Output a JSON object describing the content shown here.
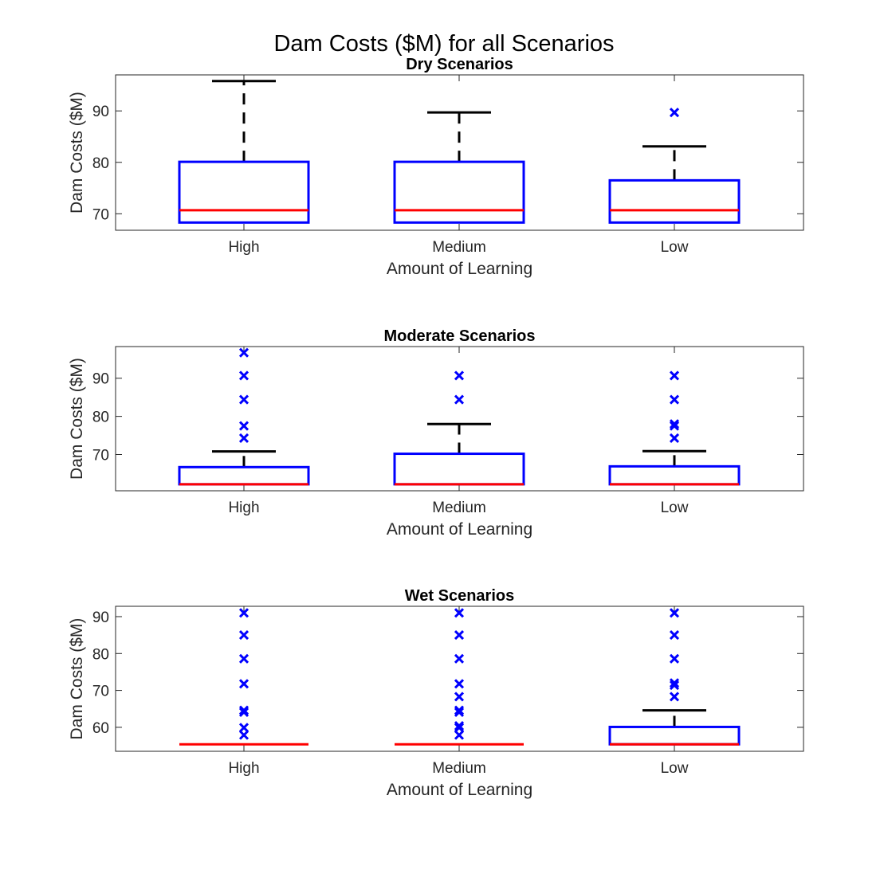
{
  "figure": {
    "title": "Dam Costs ($M) for all Scenarios"
  },
  "chart_data": [
    {
      "type": "box",
      "title": "Dry Scenarios",
      "xlabel": "Amount of Learning",
      "ylabel": "Dam Costs ($M)",
      "categories": [
        "High",
        "Medium",
        "Low"
      ],
      "ylim": [
        66.8,
        97.0
      ],
      "yticks": [
        70,
        80,
        90
      ],
      "yticklabels": [
        "70",
        "80",
        "90"
      ],
      "boxes": [
        {
          "category": "High",
          "q1": 68.3,
          "median": 70.7,
          "q3": 80.1,
          "whisker_low": 68.3,
          "whisker_high": 95.8,
          "outliers": []
        },
        {
          "category": "Medium",
          "q1": 68.3,
          "median": 70.7,
          "q3": 80.1,
          "whisker_low": 68.3,
          "whisker_high": 89.7,
          "outliers": []
        },
        {
          "category": "Low",
          "q1": 68.3,
          "median": 70.7,
          "q3": 76.5,
          "whisker_low": 68.3,
          "whisker_high": 83.1,
          "outliers": [
            89.7
          ]
        }
      ],
      "colors": {
        "box": "#0000ff",
        "median": "#ff0000",
        "whisker": "#000000",
        "outlier": "#0000ff"
      }
    },
    {
      "type": "box",
      "title": "Moderate Scenarios",
      "xlabel": "Amount of Learning",
      "ylabel": "Dam Costs ($M)",
      "categories": [
        "High",
        "Medium",
        "Low"
      ],
      "ylim": [
        60.5,
        98.3
      ],
      "yticks": [
        70,
        80,
        90
      ],
      "yticklabels": [
        "70",
        "80",
        "90"
      ],
      "boxes": [
        {
          "category": "High",
          "q1": 62.2,
          "median": 62.2,
          "q3": 66.7,
          "whisker_low": 62.2,
          "whisker_high": 70.8,
          "outliers": [
            74.3,
            77.5,
            84.4,
            90.7,
            96.7
          ]
        },
        {
          "category": "Medium",
          "q1": 62.2,
          "median": 62.2,
          "q3": 70.2,
          "whisker_low": 62.2,
          "whisker_high": 78.0,
          "outliers": [
            84.4,
            90.7
          ]
        },
        {
          "category": "Low",
          "q1": 62.2,
          "median": 62.2,
          "q3": 66.9,
          "whisker_low": 62.2,
          "whisker_high": 70.9,
          "outliers": [
            74.3,
            77.5,
            78.0,
            84.4,
            90.7
          ]
        }
      ],
      "colors": {
        "box": "#0000ff",
        "median": "#ff0000",
        "whisker": "#000000",
        "outlier": "#0000ff"
      }
    },
    {
      "type": "box",
      "title": "Wet Scenarios",
      "xlabel": "Amount of Learning",
      "ylabel": "Dam Costs ($M)",
      "categories": [
        "High",
        "Medium",
        "Low"
      ],
      "ylim": [
        53.5,
        92.8
      ],
      "yticks": [
        60,
        70,
        80,
        90
      ],
      "yticklabels": [
        "60",
        "70",
        "80",
        "90"
      ],
      "boxes": [
        {
          "category": "High",
          "q1": 55.4,
          "median": 55.4,
          "q3": 55.4,
          "whisker_low": 55.4,
          "whisker_high": 55.4,
          "outliers": [
            57.9,
            59.9,
            64.1,
            64.6,
            71.8,
            78.6,
            85.0,
            91.0
          ]
        },
        {
          "category": "Medium",
          "q1": 55.4,
          "median": 55.4,
          "q3": 55.4,
          "whisker_low": 55.4,
          "whisker_high": 55.4,
          "outliers": [
            57.9,
            59.9,
            60.4,
            64.1,
            64.6,
            68.3,
            71.8,
            78.6,
            85.0,
            91.0
          ]
        },
        {
          "category": "Low",
          "q1": 55.4,
          "median": 55.4,
          "q3": 60.1,
          "whisker_low": 55.4,
          "whisker_high": 64.6,
          "outliers": [
            68.3,
            71.4,
            72.0,
            78.6,
            85.0,
            91.0
          ]
        }
      ],
      "colors": {
        "box": "#0000ff",
        "median": "#ff0000",
        "whisker": "#000000",
        "outlier": "#0000ff"
      }
    }
  ]
}
